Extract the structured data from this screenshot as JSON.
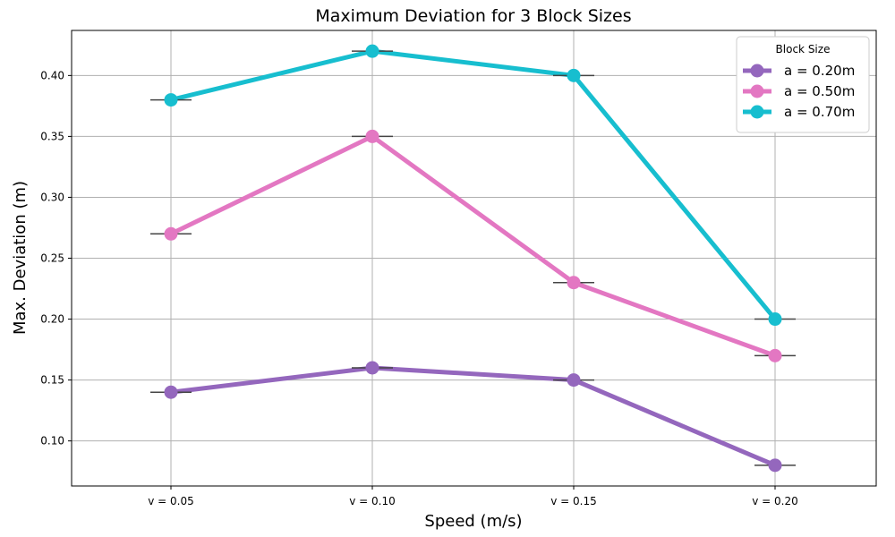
{
  "chart_data": {
    "type": "line",
    "title": "Maximum Deviation for 3 Block Sizes",
    "xlabel": "Speed (m/s)",
    "ylabel": "Max. Deviation (m)",
    "categories": [
      "v = 0.05",
      "v = 0.10",
      "v = 0.15",
      "v = 0.20"
    ],
    "ylim": [
      0.063,
      0.437
    ],
    "yticks": [
      0.1,
      0.15,
      0.2,
      0.25,
      0.3,
      0.35,
      0.4
    ],
    "ytick_labels": [
      "0.10",
      "0.15",
      "0.20",
      "0.25",
      "0.30",
      "0.35",
      "0.40"
    ],
    "grid": true,
    "legend": {
      "title": "Block Size",
      "position": "top-right"
    },
    "error_bars": "near-zero horizontal caps at each point",
    "series": [
      {
        "name": "a = 0.20m",
        "color": "#9467bd",
        "values": [
          0.14,
          0.16,
          0.15,
          0.08
        ]
      },
      {
        "name": "a = 0.50m",
        "color": "#e377c2",
        "values": [
          0.27,
          0.35,
          0.23,
          0.17
        ]
      },
      {
        "name": "a = 0.70m",
        "color": "#17becf",
        "values": [
          0.38,
          0.42,
          0.4,
          0.2
        ]
      }
    ]
  }
}
